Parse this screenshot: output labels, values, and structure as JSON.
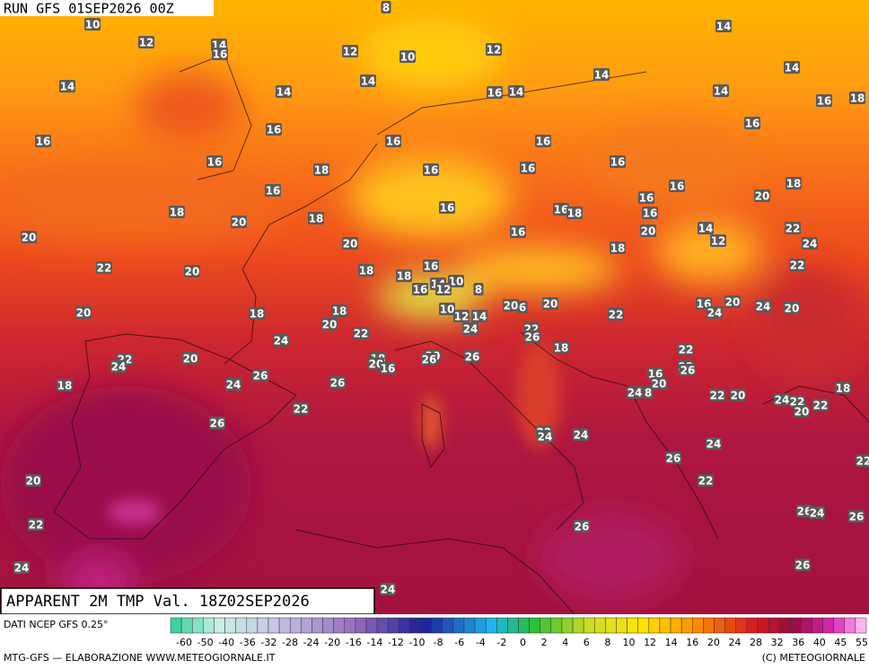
{
  "header": {
    "run": "RUN GFS 01SEP2026 00Z"
  },
  "map": {
    "labels": [
      10,
      12,
      14,
      16,
      12,
      10,
      12,
      14,
      14,
      14,
      14,
      14,
      14,
      16,
      14,
      14,
      16,
      18,
      16,
      16,
      16,
      16,
      16,
      16,
      18,
      16,
      16,
      16,
      16,
      16,
      20,
      18,
      16,
      18,
      20,
      18,
      16,
      16,
      18,
      16,
      22,
      20,
      20,
      16,
      20,
      14,
      12,
      24,
      22,
      20,
      18,
      16,
      18,
      18,
      22,
      16,
      14,
      10,
      12,
      8,
      20,
      18,
      18,
      20,
      6,
      20,
      22,
      16,
      20,
      24,
      24,
      20,
      20,
      10,
      12,
      14,
      22,
      24,
      22,
      26,
      24,
      18,
      22,
      22,
      24,
      20,
      18,
      20,
      16,
      20,
      26,
      26,
      22,
      26,
      16,
      26,
      24,
      26,
      18,
      20,
      24,
      8,
      22,
      20,
      24,
      22,
      20,
      22,
      18,
      22,
      26,
      22,
      24,
      24,
      24,
      26,
      20,
      22,
      22,
      26,
      24,
      26,
      22,
      26,
      24,
      26,
      24,
      8
    ],
    "source_note": "(C) METEOGIORNALE"
  },
  "footer": {
    "title": "APPARENT 2M TMP Val. 18Z02SEP2026",
    "source": "DATI NCEP GFS 0.25°",
    "scale": [
      -60,
      -50,
      -40,
      -36,
      -32,
      -28,
      -24,
      -20,
      -16,
      -14,
      -12,
      -10,
      -8,
      -6,
      -4,
      -2,
      0,
      2,
      4,
      6,
      8,
      10,
      12,
      14,
      16,
      20,
      24,
      28,
      32,
      36,
      40,
      45,
      55
    ],
    "credit": "MTG-GFS — ELABORAZIONE WWW.METEOGIORNALE.IT"
  }
}
